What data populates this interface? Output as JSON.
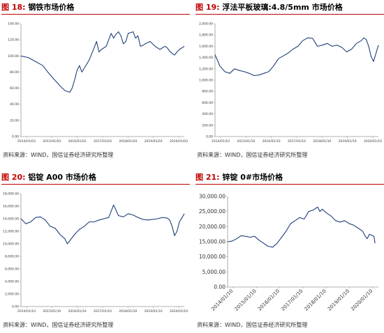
{
  "panels": [
    {
      "label": "图 18:",
      "title": "钢铁市场价格",
      "source": "资料来源：WIND，国信证券经济研究所整理",
      "chart_data": {
        "type": "line",
        "ylim": [
          0,
          140
        ],
        "yticks": [
          0,
          20,
          40,
          60,
          80,
          100,
          120,
          140
        ],
        "ytick_labels": [
          "0.00",
          "20.00",
          "40.00",
          "60.00",
          "80.00",
          "100.00",
          "120.00",
          "140.00"
        ],
        "xtick_labels": [
          "2014/01/03",
          "2015/01/03",
          "2016/01/03",
          "2017/01/03",
          "2018/01/03",
          "2019/01/03",
          "2020/01/03"
        ],
        "x_start": 2014.0,
        "x_end": 2020.7,
        "line_color": "#1f3e7a",
        "series": [
          {
            "x": [
              2014.0,
              2014.3,
              2014.6,
              2014.9,
              2015.1,
              2015.3,
              2015.6,
              2015.8,
              2016.0,
              2016.1,
              2016.2,
              2016.3,
              2016.4,
              2016.5,
              2016.6,
              2016.8,
              2017.0,
              2017.1,
              2017.2,
              2017.3,
              2017.5,
              2017.6,
              2017.7,
              2017.8,
              2017.9,
              2018.0,
              2018.1,
              2018.2,
              2018.3,
              2018.4,
              2018.6,
              2018.7,
              2018.8,
              2018.9,
              2019.0,
              2019.1,
              2019.3,
              2019.5,
              2019.7,
              2019.9,
              2020.0,
              2020.1,
              2020.2,
              2020.3,
              2020.4,
              2020.5,
              2020.7
            ],
            "y": [
              100,
              98,
              93,
              88,
              80,
              73,
              63,
              57,
              55,
              60,
              70,
              82,
              88,
              80,
              85,
              95,
              110,
              118,
              105,
              108,
              112,
              120,
              128,
              122,
              127,
              130,
              125,
              115,
              118,
              128,
              130,
              122,
              125,
              112,
              113,
              115,
              118,
              112,
              108,
              112,
              110,
              106,
              103,
              101,
              105,
              108,
              112
            ]
          }
        ]
      }
    },
    {
      "label": "图 19:",
      "title": "浮法平板玻璃:4.8/5mm 市场价格",
      "source": "资料来源：WIND，国信证券经济研究所整理",
      "chart_data": {
        "type": "line",
        "ylim": [
          0,
          2000
        ],
        "yticks": [
          0,
          200,
          400,
          600,
          800,
          1000,
          1200,
          1400,
          1600,
          1800,
          2000
        ],
        "ytick_labels": [
          "0.00",
          "200.00",
          "400.00",
          "600.00",
          "800.00",
          "1,000.00",
          "1,200.00",
          "1,400.00",
          "1,600.00",
          "1,800.00",
          "2,000.00"
        ],
        "xtick_labels": [
          "2014/01/10",
          "2015/01/10",
          "2016/01/10",
          "2017/01/10",
          "2018/01/10",
          "2019/01/10",
          "2020/01/10"
        ],
        "x_start": 2014.0,
        "x_end": 2020.7,
        "line_color": "#1f3e7a",
        "series": [
          {
            "x": [
              2014.0,
              2014.2,
              2014.4,
              2014.6,
              2014.8,
              2015.0,
              2015.2,
              2015.4,
              2015.6,
              2015.8,
              2016.0,
              2016.2,
              2016.4,
              2016.6,
              2016.8,
              2017.0,
              2017.2,
              2017.4,
              2017.6,
              2017.8,
              2018.0,
              2018.2,
              2018.4,
              2018.6,
              2018.8,
              2019.0,
              2019.2,
              2019.4,
              2019.6,
              2019.8,
              2020.0,
              2020.1,
              2020.2,
              2020.3,
              2020.4,
              2020.5,
              2020.7
            ],
            "y": [
              1450,
              1250,
              1150,
              1120,
              1200,
              1170,
              1150,
              1120,
              1080,
              1090,
              1120,
              1150,
              1250,
              1380,
              1430,
              1480,
              1550,
              1600,
              1700,
              1750,
              1740,
              1600,
              1620,
              1650,
              1600,
              1620,
              1580,
              1500,
              1550,
              1650,
              1700,
              1750,
              1720,
              1600,
              1420,
              1330,
              1620
            ]
          }
        ]
      }
    },
    {
      "label": "图 20:",
      "title": "铝锭 A00 市场价格",
      "source": "资料来源：WIND，国信证券经济研究所整理",
      "chart_data": {
        "type": "line",
        "ylim": [
          0,
          18000
        ],
        "yticks": [
          0,
          2000,
          4000,
          6000,
          8000,
          10000,
          12000,
          14000,
          16000,
          18000
        ],
        "ytick_labels": [
          "0.00",
          "2,000.00",
          "4,000.00",
          "6,000.00",
          "8,000.00",
          "10,000.00",
          "12,000.00",
          "14,000.00",
          "16,000.00",
          "18,000.00"
        ],
        "xtick_labels": [
          "2014/01/10",
          "2015/01/10",
          "2016/01/10",
          "2017/01/10",
          "2018/01/10",
          "2019/01/10",
          "2020/01/10"
        ],
        "x_start": 2014.0,
        "x_end": 2020.7,
        "line_color": "#1f3e7a",
        "series": [
          {
            "x": [
              2014.0,
              2014.2,
              2014.4,
              2014.6,
              2014.8,
              2015.0,
              2015.2,
              2015.4,
              2015.6,
              2015.8,
              2015.9,
              2016.0,
              2016.2,
              2016.4,
              2016.6,
              2016.8,
              2017.0,
              2017.2,
              2017.4,
              2017.6,
              2017.8,
              2018.0,
              2018.2,
              2018.4,
              2018.6,
              2018.8,
              2019.0,
              2019.2,
              2019.4,
              2019.6,
              2019.8,
              2020.0,
              2020.1,
              2020.2,
              2020.3,
              2020.4,
              2020.5,
              2020.7
            ],
            "y": [
              14000,
              13200,
              13500,
              14200,
              14300,
              13800,
              12800,
              12500,
              11500,
              10800,
              10000,
              10500,
              11500,
              12300,
              12800,
              13500,
              13500,
              13800,
              14000,
              14200,
              16200,
              14500,
              14300,
              14800,
              14600,
              14200,
              13900,
              13800,
              13900,
              14000,
              14200,
              14100,
              13800,
              12800,
              11300,
              12000,
              13500,
              14800
            ]
          }
        ]
      }
    },
    {
      "label": "图 21:",
      "title": "锌锭 0#市场价格",
      "source": "资料来源：WIND，国信证券经济研究所整理",
      "chart_data": {
        "type": "line",
        "ylim": [
          0,
          30000
        ],
        "yticks": [
          0,
          5000,
          10000,
          15000,
          20000,
          25000,
          30000
        ],
        "ytick_labels": [
          "0.00",
          "5,000.00",
          "10,000.00",
          "15,000.00",
          "20,000.00",
          "25,000.00",
          "30,000.00"
        ],
        "xtick_labels": [
          "2014/01/10",
          "2015/01/10",
          "2016/01/10",
          "2017/01/10",
          "2018/01/10",
          "2019/01/10",
          "2020/01/10"
        ],
        "x_start": 2014.0,
        "x_end": 2020.7,
        "line_color": "#1f3e7a",
        "series": [
          {
            "x": [
              2014.0,
              2014.2,
              2014.4,
              2014.6,
              2014.8,
              2015.0,
              2015.2,
              2015.4,
              2015.6,
              2015.8,
              2016.0,
              2016.2,
              2016.4,
              2016.6,
              2016.8,
              2017.0,
              2017.2,
              2017.4,
              2017.6,
              2017.8,
              2018.0,
              2018.1,
              2018.2,
              2018.4,
              2018.6,
              2018.8,
              2019.0,
              2019.2,
              2019.4,
              2019.6,
              2019.8,
              2020.0,
              2020.1,
              2020.2,
              2020.3,
              2020.4,
              2020.5,
              2020.55
            ],
            "y": [
              15000,
              15200,
              16000,
              17000,
              16800,
              16500,
              16800,
              15500,
              14500,
              13500,
              13200,
              14500,
              16500,
              18500,
              21000,
              22000,
              23000,
              22500,
              25000,
              25500,
              26500,
              25000,
              25800,
              24500,
              23500,
              22000,
              21500,
              22000,
              21000,
              20500,
              19500,
              18500,
              17000,
              16000,
              17500,
              17200,
              16800,
              14500
            ]
          }
        ]
      }
    }
  ]
}
